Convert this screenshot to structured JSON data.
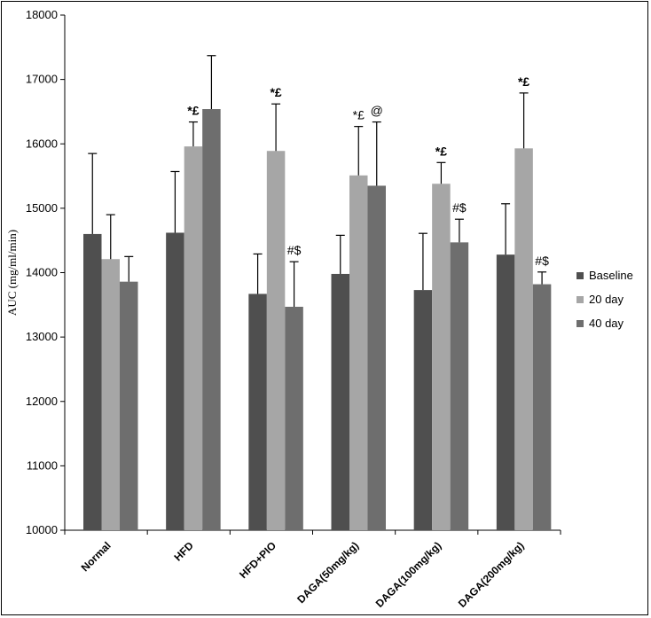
{
  "chart_data": {
    "type": "bar",
    "ylabel": "AUC (mg/ml/min)",
    "ylim": [
      10000,
      18000
    ],
    "yticks": [
      "10000",
      "11000",
      "12000",
      "13000",
      "14000",
      "15000",
      "16000",
      "17000",
      "18000"
    ],
    "categories": [
      "Normal",
      "HFD",
      "HFD+PIO",
      "DAGA(50mg/kg)",
      "DAGA(100mg/kg)",
      "DAGA(200mg/kg)"
    ],
    "series": [
      {
        "name": "Baseline",
        "color": "#4f4f4f",
        "values": [
          14600,
          14620,
          13670,
          13980,
          13730,
          14280
        ],
        "errors": [
          1250,
          950,
          620,
          600,
          880,
          790
        ]
      },
      {
        "name": "20 day",
        "color": "#a6a6a6",
        "values": [
          14210,
          15960,
          15890,
          15510,
          15380,
          15930
        ],
        "errors": [
          690,
          380,
          730,
          760,
          330,
          860
        ]
      },
      {
        "name": "40 day",
        "color": "#6e6e6e",
        "values": [
          13860,
          16540,
          13470,
          15350,
          14470,
          13820
        ],
        "errors": [
          390,
          830,
          700,
          990,
          360,
          190
        ]
      }
    ],
    "annotations": [
      {
        "category": 1,
        "series": 1,
        "text": "*£",
        "bold": true
      },
      {
        "category": 2,
        "series": 1,
        "text": "*£",
        "bold": true
      },
      {
        "category": 2,
        "series": 2,
        "text": "#$",
        "bold": false
      },
      {
        "category": 3,
        "series": 1,
        "text": "*£",
        "bold": false
      },
      {
        "category": 3,
        "series": 2,
        "text": "@",
        "bold": false
      },
      {
        "category": 4,
        "series": 1,
        "text": "*£",
        "bold": true
      },
      {
        "category": 4,
        "series": 2,
        "text": "#$",
        "bold": false
      },
      {
        "category": 5,
        "series": 1,
        "text": "*£",
        "bold": true
      },
      {
        "category": 5,
        "series": 2,
        "text": "#$",
        "bold": false
      }
    ],
    "legend": {
      "position": "right"
    },
    "grid": false
  }
}
